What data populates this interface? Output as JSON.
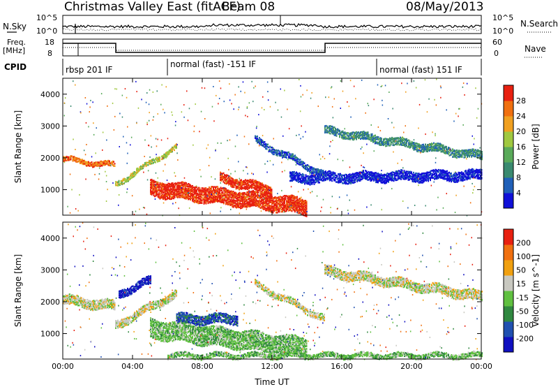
{
  "header": {
    "title": "Christmas Valley East (fitACF)",
    "beam": "Beam 08",
    "date": "08/May/2013"
  },
  "panels": {
    "nsky": {
      "label": "N.Sky",
      "ticks": [
        "10^5",
        "10^0"
      ],
      "right_label": "N.Search"
    },
    "freq": {
      "label_top": "Freq.",
      "label_bot": "[MHz]",
      "ticks_left": [
        "18",
        "8"
      ],
      "ticks_right": [
        "60",
        "0"
      ],
      "right_label": "Nave"
    },
    "cpid": {
      "label": "CPID",
      "segments": [
        "rbsp 201 IF",
        "normal (fast) -151 IF",
        "normal (fast) 151 IF"
      ]
    }
  },
  "colors": {
    "power": [
      "#1010d8",
      "#2060b8",
      "#3a8a70",
      "#5aaa5a",
      "#a0c840",
      "#f0a020",
      "#f07010",
      "#e82010"
    ],
    "velocity": [
      "#1010c0",
      "#2050b0",
      "#308840",
      "#60c040",
      "#c8c8c0",
      "#f0a010",
      "#f07010",
      "#e82010"
    ]
  },
  "chart_data": [
    {
      "type": "heatmap",
      "title": "Power",
      "ylabel": "Slant Range [km]",
      "xlabel": "",
      "xticks": [
        "00:00",
        "04:00",
        "08:00",
        "12:00",
        "16:00",
        "20:00",
        "00:00"
      ],
      "yticks": [
        "1000",
        "2000",
        "3000",
        "4000"
      ],
      "xlim": [
        0,
        24
      ],
      "ylim": [
        200,
        4500
      ],
      "colorbar": {
        "label": "Power [dB]",
        "ticks": [
          "4",
          "8",
          "12",
          "16",
          "20",
          "24",
          "28"
        ]
      },
      "bands": [
        {
          "t0": 0,
          "t1": 3,
          "r0": 2000,
          "r1": 1800,
          "w": 150,
          "level": 6
        },
        {
          "t0": 3,
          "t1": 6.5,
          "r0": 1200,
          "r1": 2400,
          "w": 150,
          "level": 4
        },
        {
          "t0": 5,
          "t1": 14,
          "r0": 1100,
          "r1": 500,
          "w": 500,
          "level": 7
        },
        {
          "t0": 9,
          "t1": 12,
          "r0": 1400,
          "r1": 1000,
          "w": 300,
          "level": 7
        },
        {
          "t0": 11,
          "t1": 15,
          "r0": 2600,
          "r1": 1500,
          "w": 200,
          "level": 1
        },
        {
          "t0": 15,
          "t1": 24,
          "r0": 2900,
          "r1": 2100,
          "w": 250,
          "level": 2
        },
        {
          "t0": 13,
          "t1": 24,
          "r0": 1400,
          "r1": 1500,
          "w": 300,
          "level": 0
        }
      ]
    },
    {
      "type": "heatmap",
      "title": "Velocity",
      "ylabel": "Slant Range [km]",
      "xlabel": "Time UT",
      "xticks": [
        "00:00",
        "04:00",
        "08:00",
        "12:00",
        "16:00",
        "20:00",
        "00:00"
      ],
      "yticks": [
        "1000",
        "2000",
        "3000",
        "4000"
      ],
      "xlim": [
        0,
        24
      ],
      "ylim": [
        200,
        4500
      ],
      "colorbar": {
        "label": "Velocity [m s^-1]",
        "ticks": [
          "200",
          "100",
          "50",
          "15",
          "-15",
          "-50",
          "-100",
          "-200"
        ]
      },
      "bands": [
        {
          "t0": 0,
          "t1": 3,
          "r0": 2100,
          "r1": 1900,
          "w": 300,
          "level": 4
        },
        {
          "t0": 3,
          "t1": 6.5,
          "r0": 1300,
          "r1": 2300,
          "w": 250,
          "level": 4
        },
        {
          "t0": 3.2,
          "t1": 5,
          "r0": 2300,
          "r1": 2700,
          "w": 250,
          "level": 0
        },
        {
          "t0": 5,
          "t1": 14,
          "r0": 1200,
          "r1": 600,
          "w": 600,
          "level": 3
        },
        {
          "t0": 6.5,
          "t1": 10,
          "r0": 1500,
          "r1": 1500,
          "w": 300,
          "level": 1
        },
        {
          "t0": 11,
          "t1": 15,
          "r0": 2600,
          "r1": 1500,
          "w": 200,
          "level": 4
        },
        {
          "t0": 15,
          "t1": 24,
          "r0": 3000,
          "r1": 2200,
          "w": 300,
          "level": 4
        },
        {
          "t0": 6,
          "t1": 24,
          "r0": 350,
          "r1": 350,
          "w": 150,
          "level": 3
        }
      ]
    }
  ]
}
